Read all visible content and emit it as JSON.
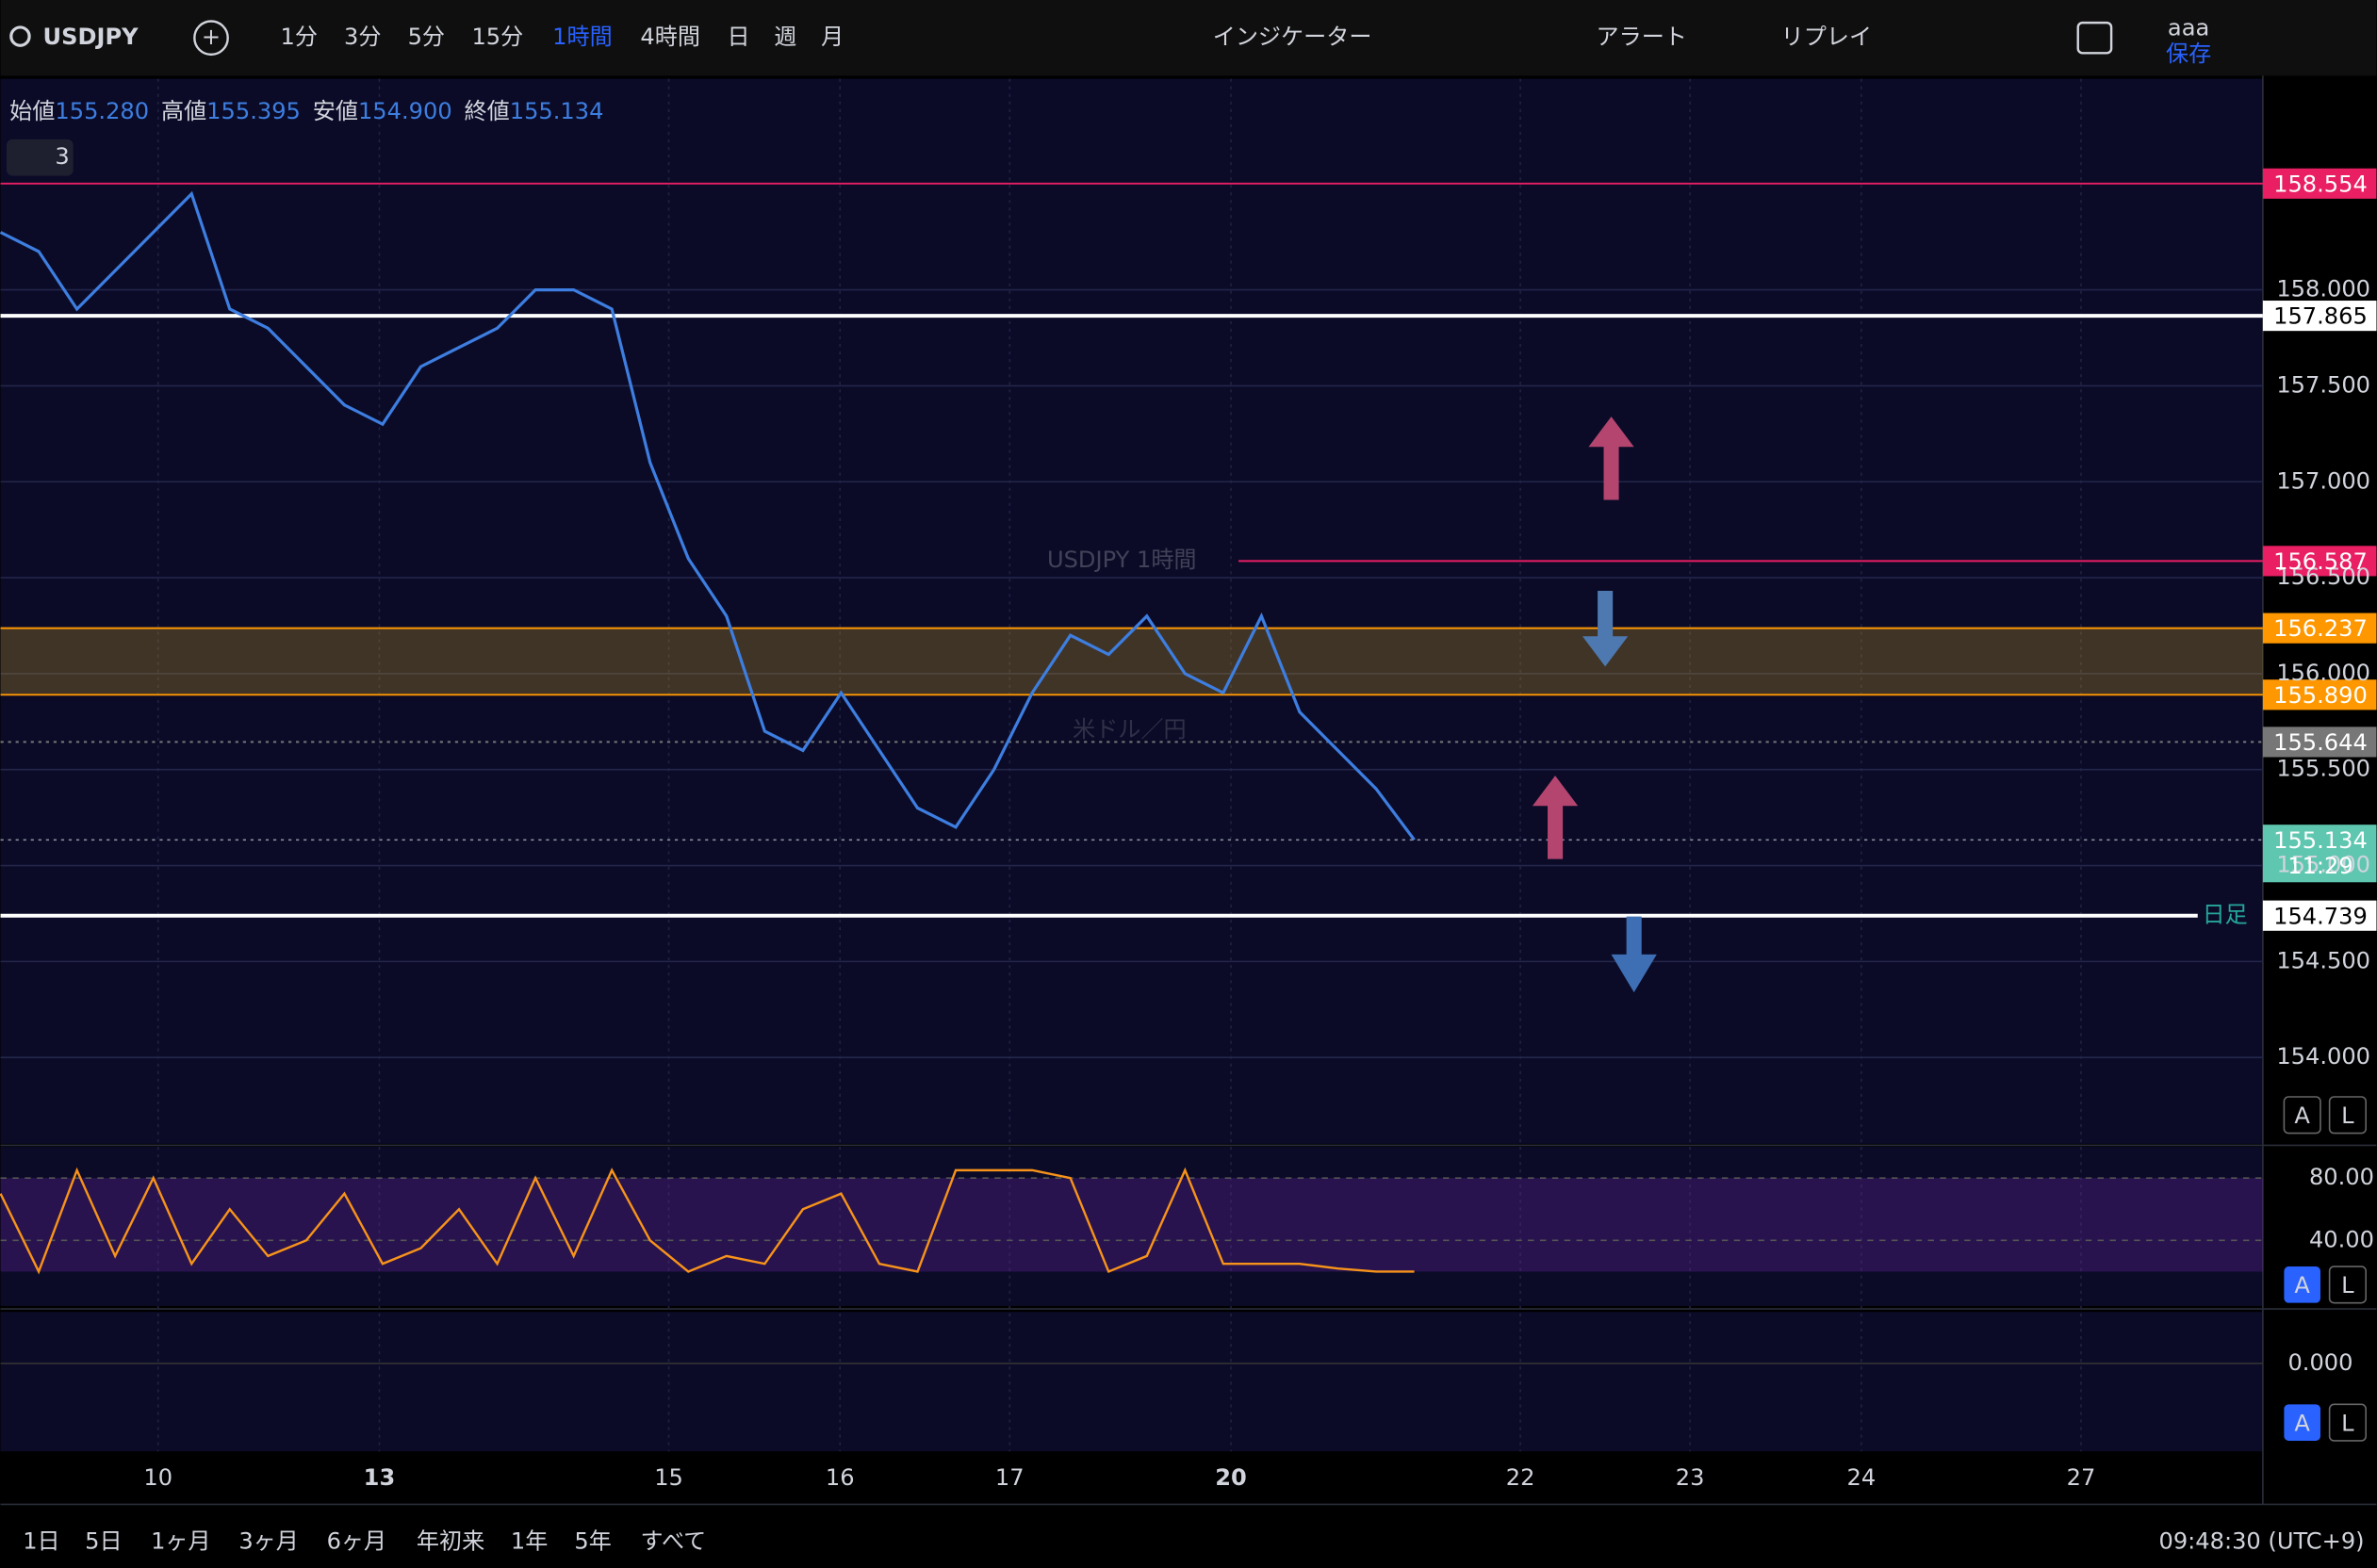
{
  "toolbar": {
    "symbol": "USDJPY",
    "intervals": [
      "1分",
      "3分",
      "5分",
      "15分",
      "1時間",
      "4時間",
      "日",
      "週",
      "月"
    ],
    "indicators": "インジケーター",
    "alert": "アラート",
    "replay": "リプレイ",
    "user": "aaa",
    "save": "保存"
  },
  "legend": {
    "items": [
      {
        "name": "始値",
        "value": "155.280"
      },
      {
        "name": "高値",
        "value": "155.395"
      },
      {
        "name": "安値",
        "value": "154.900"
      },
      {
        "name": "終値",
        "value": "155.134"
      }
    ],
    "study_count": "3"
  },
  "watermark": {
    "title": "USDJPY 1時間",
    "subtitle": "米ドル／円"
  },
  "chart_data": {
    "type": "line",
    "color": "#3d7ee0",
    "values": [
      158.3,
      158.2,
      157.9,
      158.1,
      158.3,
      158.5,
      157.9,
      157.8,
      157.6,
      157.4,
      157.3,
      157.6,
      157.7,
      157.8,
      158.0,
      158.0,
      157.9,
      157.1,
      156.6,
      156.3,
      155.7,
      155.6,
      155.9,
      155.6,
      155.3,
      155.2,
      155.5,
      155.9,
      156.2,
      156.1,
      156.3,
      156.0,
      155.9,
      156.3,
      155.8,
      155.6,
      155.4,
      155.134
    ],
    "ylim": [
      159.1,
      153.55
    ],
    "yticks": [
      {
        "value": 158,
        "label": "158.000"
      },
      {
        "value": 157.5,
        "label": "157.500"
      },
      {
        "value": 157,
        "label": "157.000"
      },
      {
        "value": 156.5,
        "label": "156.500"
      },
      {
        "value": 156,
        "label": "156.000"
      },
      {
        "value": 155.5,
        "label": "155.500"
      },
      {
        "value": 155,
        "label": "155.000"
      },
      {
        "value": 154.5,
        "label": "154.500"
      },
      {
        "value": 154,
        "label": "154.000"
      }
    ],
    "price_lines": [
      {
        "value": 158.554,
        "color": "#e91e63"
      },
      {
        "value": 157.865,
        "color": "#ffffff"
      },
      {
        "value": 156.587,
        "color": "#e91e63"
      },
      {
        "value": 156.237,
        "color": "#ff9800"
      },
      {
        "value": {
          "value": 155.89,
          "label": "155.890"
        },
        "color": "#ff9800"
      },
      {
        "value": 155.644,
        "color": "#777777"
      },
      {
        "value": 154.739,
        "color": "#ffffff"
      }
    ],
    "last_price": {
      "value": 155.134,
      "countdown": "11:29",
      "color": "#5fc7b0"
    },
    "daily_tag": "日足",
    "x_labels": [
      "10",
      "13",
      "15",
      "16",
      "17",
      "20",
      "22",
      "23",
      "24",
      "27"
    ]
  },
  "stoch": {
    "color": "#f7931a",
    "values": [
      70,
      20,
      85,
      30,
      80,
      25,
      60,
      30,
      40,
      70,
      25,
      35,
      60,
      25,
      80,
      30,
      85,
      40,
      20,
      30,
      25,
      60,
      70,
      25,
      20,
      85,
      85,
      85,
      80,
      20,
      30,
      85,
      25,
      25,
      25,
      22,
      20,
      20
    ],
    "ylim": [
      100,
      -2
    ],
    "yticks": [
      {
        "value": 80,
        "label": "80.00"
      },
      {
        "value": 40,
        "label": "40.00"
      }
    ]
  },
  "macd": {
    "yticks": [
      {
        "value": 0,
        "label": "0.000"
      }
    ]
  },
  "bottom": {
    "ranges": [
      "1日",
      "5日",
      "1ヶ月",
      "3ヶ月",
      "6ヶ月",
      "年初来",
      "1年",
      "5年",
      "すべて"
    ],
    "clock": "09:48:30 (UTC+9)"
  }
}
